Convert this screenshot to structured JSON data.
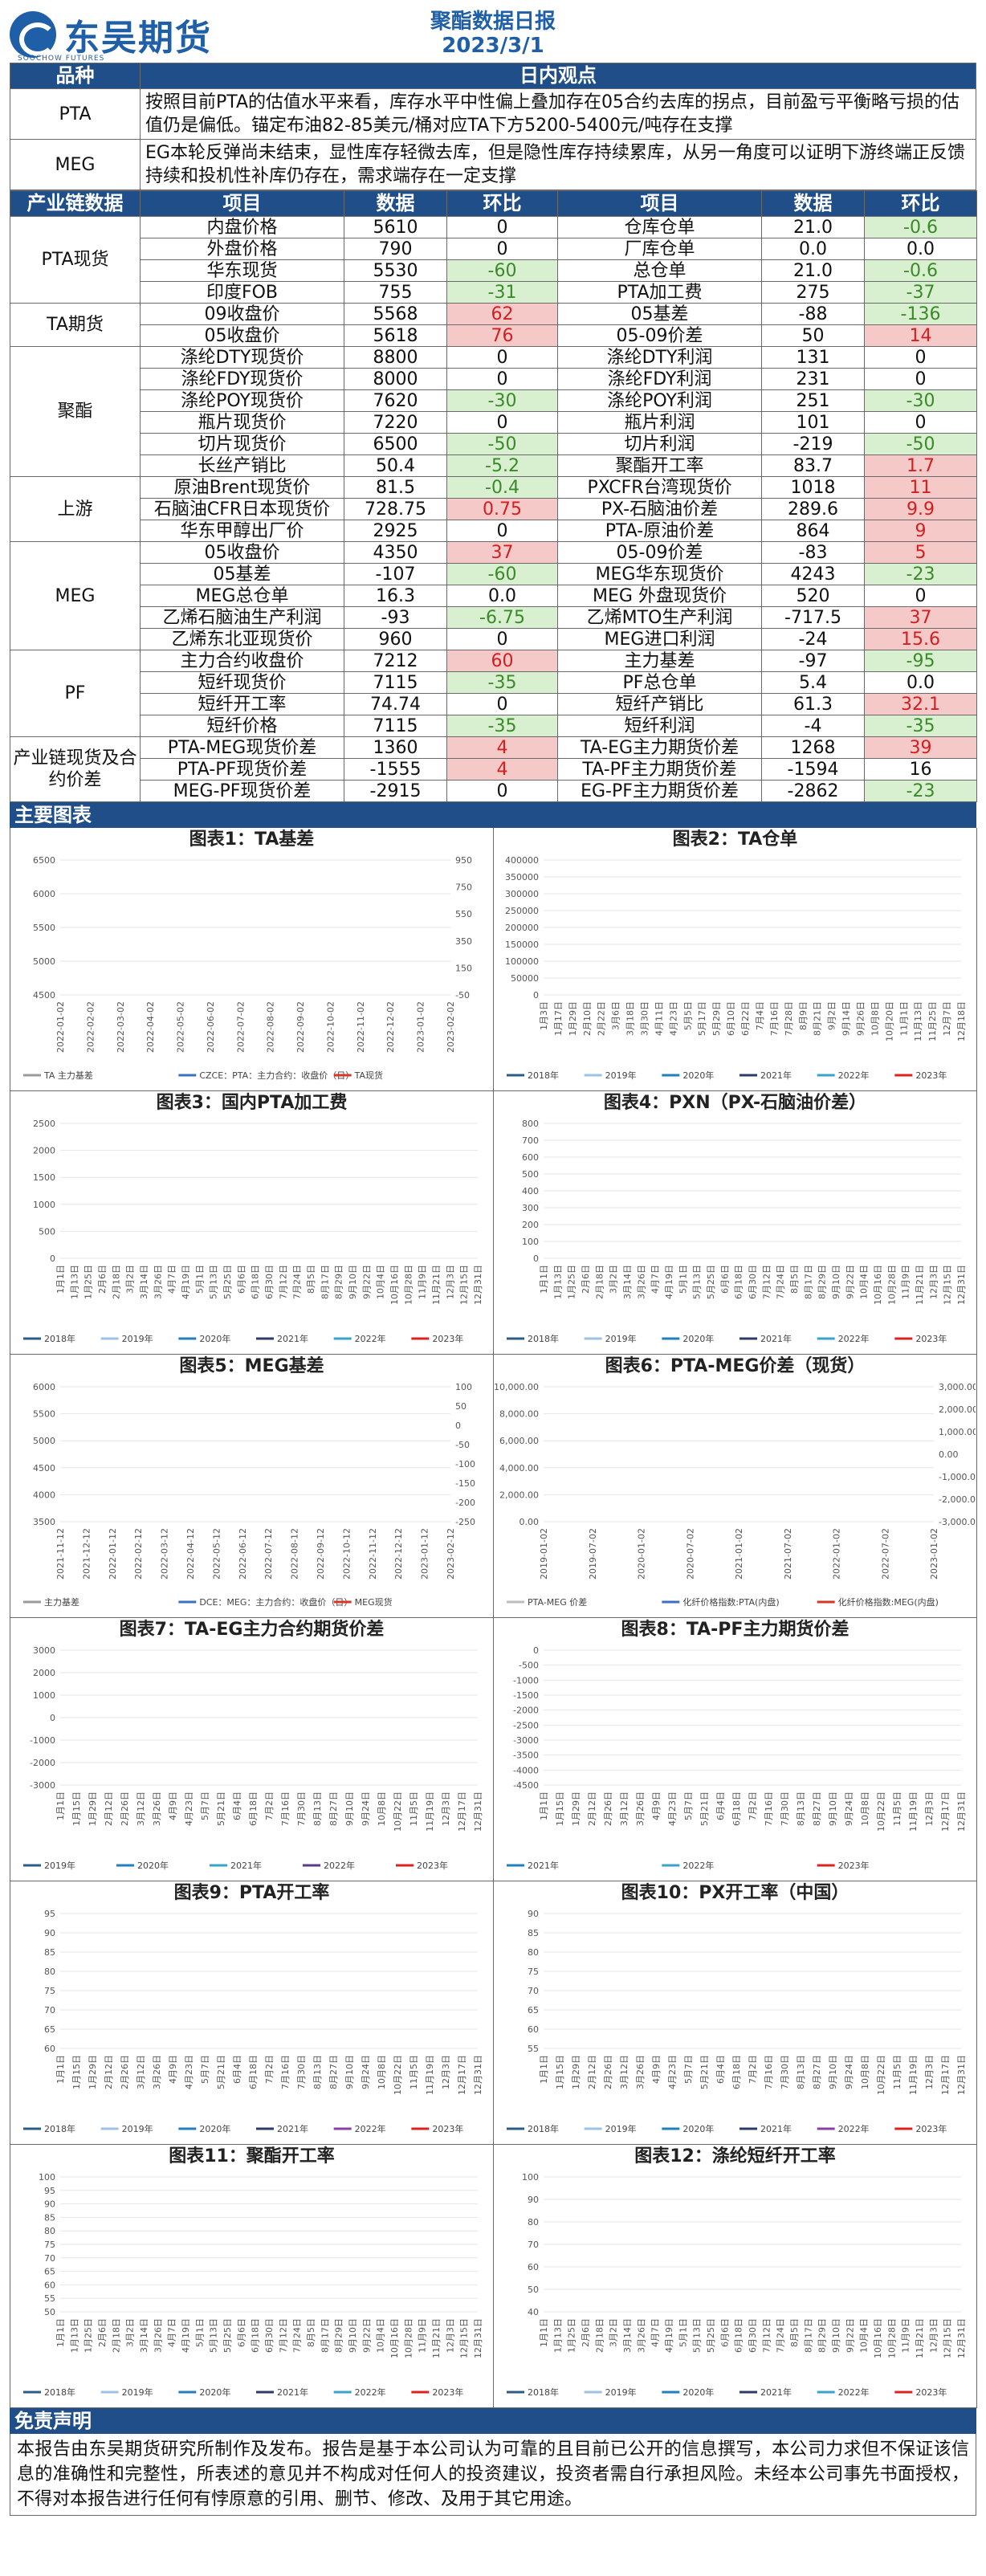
{
  "header": {
    "company": "东吴期货",
    "company_en": "SOOCHOW FUTURES",
    "report_name": "聚酯数据日报",
    "date": "2023/3/1"
  },
  "view": {
    "head_left": "品种",
    "head_right": "日内观点",
    "rows": [
      {
        "name": "PTA",
        "text": "按照目前PTA的估值水平来看，库存水平中性偏上叠加存在05合约去库的拐点，目前盈亏平衡略亏损的估值仍是偏低。锚定布油82-85美元/桶对应TA下方5200-5400元/吨存在支撑"
      },
      {
        "name": "MEG",
        "text": "EG本轮反弹尚未结束，显性库存轻微去库，但是隐性库存持续累库，从另一角度可以证明下游终端正反馈持续和投机性补库仍存在，需求端存在一定支撑"
      }
    ]
  },
  "industry": {
    "headers": [
      "产业链数据",
      "项目",
      "数据",
      "环比",
      "项目",
      "数据",
      "环比"
    ],
    "groups": [
      {
        "name": "PTA现货",
        "rows": [
          [
            "内盘价格",
            "5610",
            "0",
            "",
            "仓库仓单",
            "21.0",
            "-0.6",
            "g"
          ],
          [
            "外盘价格",
            "790",
            "0",
            "",
            "厂库仓单",
            "0.0",
            "0.0",
            ""
          ],
          [
            "华东现货",
            "5530",
            "-60",
            "g",
            "总仓单",
            "21.0",
            "-0.6",
            "g"
          ],
          [
            "印度FOB",
            "755",
            "-31",
            "g",
            "PTA加工费",
            "275",
            "-37",
            "g"
          ]
        ]
      },
      {
        "name": "TA期货",
        "rows": [
          [
            "09收盘价",
            "5568",
            "62",
            "r",
            "05基差",
            "-88",
            "-136",
            "g"
          ],
          [
            "05收盘价",
            "5618",
            "76",
            "r",
            "05-09价差",
            "50",
            "14",
            "r"
          ]
        ]
      },
      {
        "name": "聚酯",
        "rows": [
          [
            "涤纶DTY现货价",
            "8800",
            "0",
            "",
            "涤纶DTY利润",
            "131",
            "0",
            ""
          ],
          [
            "涤纶FDY现货价",
            "8000",
            "0",
            "",
            "涤纶FDY利润",
            "231",
            "0",
            ""
          ],
          [
            "涤纶POY现货价",
            "7620",
            "-30",
            "g",
            "涤纶POY利润",
            "251",
            "-30",
            "g"
          ],
          [
            "瓶片现货价",
            "7220",
            "0",
            "",
            "瓶片利润",
            "101",
            "0",
            ""
          ],
          [
            "切片现货价",
            "6500",
            "-50",
            "g",
            "切片利润",
            "-219",
            "-50",
            "g"
          ],
          [
            "长丝产销比",
            "50.4",
            "-5.2",
            "g",
            "聚酯开工率",
            "83.7",
            "1.7",
            "r"
          ]
        ]
      },
      {
        "name": "上游",
        "rows": [
          [
            "原油Brent现货价",
            "81.5",
            "-0.4",
            "g",
            "PXCFR台湾现货价",
            "1018",
            "11",
            "r"
          ],
          [
            "石脑油CFR日本现货价",
            "728.75",
            "0.75",
            "r",
            "PX-石脑油价差",
            "289.6",
            "9.9",
            "r"
          ],
          [
            "华东甲醇出厂价",
            "2925",
            "0",
            "",
            "PTA-原油价差",
            "864",
            "9",
            "r"
          ]
        ]
      },
      {
        "name": "MEG",
        "rows": [
          [
            "05收盘价",
            "4350",
            "37",
            "r",
            "05-09价差",
            "-83",
            "5",
            "r"
          ],
          [
            "05基差",
            "-107",
            "-60",
            "g",
            "MEG华东现货价",
            "4243",
            "-23",
            "g"
          ],
          [
            "MEG总仓单",
            "16.3",
            "0.0",
            "",
            "MEG 外盘现货价",
            "520",
            "0",
            ""
          ],
          [
            "乙烯石脑油生产利润",
            "-93",
            "-6.75",
            "g",
            "乙烯MTO生产利润",
            "-717.5",
            "37",
            "r"
          ],
          [
            "乙烯东北亚现货价",
            "960",
            "0",
            "",
            "MEG进口利润",
            "-24",
            "15.6",
            "r"
          ]
        ]
      },
      {
        "name": "PF",
        "rows": [
          [
            "主力合约收盘价",
            "7212",
            "60",
            "r",
            "主力基差",
            "-97",
            "-95",
            "g"
          ],
          [
            "短纤现货价",
            "7115",
            "-35",
            "g",
            "PF总仓单",
            "5.4",
            "0.0",
            ""
          ],
          [
            "短纤开工率",
            "74.74",
            "0",
            "",
            "短纤产销比",
            "61.3",
            "32.1",
            "r"
          ],
          [
            "短纤价格",
            "7115",
            "-35",
            "g",
            "短纤利润",
            "-4",
            "-35",
            "g"
          ]
        ]
      },
      {
        "name": "产业链现货及合约价差",
        "rows": [
          [
            "PTA-MEG现货价差",
            "1360",
            "4",
            "r",
            "TA-EG主力期货价差",
            "1268",
            "39",
            "r"
          ],
          [
            "PTA-PF现货价差",
            "-1555",
            "4",
            "r",
            "TA-PF主力期货价差",
            "-1594",
            "16",
            ""
          ],
          [
            "MEG-PF现货价差",
            "-2915",
            "0",
            "",
            "EG-PF主力期货价差",
            "-2862",
            "-23",
            "g"
          ]
        ]
      }
    ]
  },
  "charts_section": "主要图表",
  "charts": [
    {
      "title": "图表1：TA基差",
      "y_left": [
        "6500",
        "6000",
        "5500",
        "5000",
        "4500"
      ],
      "y_right": [
        "950",
        "750",
        "550",
        "350",
        "150",
        "-50"
      ],
      "x": [
        "2022-01-02",
        "2022-02-02",
        "2022-03-02",
        "2022-04-02",
        "2022-05-02",
        "2022-06-02",
        "2022-07-02",
        "2022-08-02",
        "2022-09-02",
        "2022-10-02",
        "2022-11-02",
        "2022-12-02",
        "2023-01-02",
        "2023-02-02"
      ],
      "legend": [
        "TA 主力基差",
        "CZCE：PTA：主力合约：收盘价（日）",
        "TA现货"
      ],
      "colors": [
        "#9a9a9a",
        "#3a6fc4",
        "#d8352a"
      ]
    },
    {
      "title": "图表2：TA仓单",
      "y_left": [
        "400000",
        "350000",
        "300000",
        "250000",
        "200000",
        "150000",
        "100000",
        "50000",
        "0"
      ],
      "x": [
        "1月3日",
        "1月17日",
        "1月29日",
        "2月10日",
        "2月22日",
        "3月6日",
        "3月18日",
        "3月30日",
        "4月11日",
        "4月23日",
        "5月5日",
        "5月17日",
        "5月29日",
        "6月10日",
        "6月22日",
        "7月4日",
        "7月16日",
        "7月28日",
        "8月9日",
        "8月21日",
        "9月2日",
        "9月14日",
        "9月26日",
        "10月8日",
        "10月20日",
        "11月1日",
        "11月13日",
        "11月25日",
        "12月7日",
        "12月18日"
      ],
      "legend": [
        "2018年",
        "2019年",
        "2020年",
        "2021年",
        "2022年",
        "2023年"
      ],
      "colors": [
        "#2b5d8a",
        "#9bc3e6",
        "#1f7fbf",
        "#2e3b66",
        "#35a4c9",
        "#e01f1f"
      ]
    },
    {
      "title": "图表3：国内PTA加工费",
      "y_left": [
        "2500",
        "2000",
        "1500",
        "1000",
        "500",
        "0"
      ],
      "x": [
        "1月1日",
        "1月13日",
        "1月25日",
        "2月6日",
        "2月18日",
        "3月2日",
        "3月14日",
        "3月26日",
        "4月7日",
        "4月19日",
        "5月1日",
        "5月13日",
        "5月25日",
        "6月6日",
        "6月18日",
        "6月30日",
        "7月12日",
        "7月24日",
        "8月5日",
        "8月17日",
        "8月29日",
        "9月10日",
        "9月22日",
        "10月4日",
        "10月16日",
        "10月28日",
        "11月9日",
        "11月21日",
        "12月3日",
        "12月15日",
        "12月31日"
      ],
      "legend": [
        "2018年",
        "2019年",
        "2020年",
        "2021年",
        "2022年",
        "2023年"
      ],
      "colors": [
        "#2b5d8a",
        "#9bc3e6",
        "#1f7fbf",
        "#2e3b66",
        "#35a4c9",
        "#e01f1f"
      ]
    },
    {
      "title": "图表4：PXN（PX-石脑油价差）",
      "y_left": [
        "800",
        "700",
        "600",
        "500",
        "400",
        "300",
        "200",
        "100",
        "0"
      ],
      "x": [
        "1月1日",
        "1月13日",
        "1月25日",
        "2月6日",
        "2月18日",
        "3月2日",
        "3月14日",
        "3月26日",
        "4月7日",
        "4月19日",
        "5月1日",
        "5月13日",
        "5月25日",
        "6月6日",
        "6月18日",
        "6月30日",
        "7月12日",
        "7月24日",
        "8月5日",
        "8月17日",
        "8月29日",
        "9月10日",
        "9月22日",
        "10月4日",
        "10月16日",
        "10月28日",
        "11月9日",
        "11月21日",
        "12月3日",
        "12月15日",
        "12月31日"
      ],
      "legend": [
        "2018年",
        "2019年",
        "2020年",
        "2021年",
        "2022年",
        "2023年"
      ],
      "colors": [
        "#2b5d8a",
        "#9bc3e6",
        "#1f7fbf",
        "#2e3b66",
        "#35a4c9",
        "#e01f1f"
      ]
    },
    {
      "title": "图表5：MEG基差",
      "y_left": [
        "6000",
        "5500",
        "5000",
        "4500",
        "4000",
        "3500"
      ],
      "y_right": [
        "100",
        "50",
        "0",
        "-50",
        "-100",
        "-150",
        "-200",
        "-250"
      ],
      "x": [
        "2021-11-12",
        "2021-12-12",
        "2022-01-12",
        "2022-02-12",
        "2022-03-12",
        "2022-04-12",
        "2022-05-12",
        "2022-06-12",
        "2022-07-12",
        "2022-08-12",
        "2022-09-12",
        "2022-10-12",
        "2022-11-12",
        "2022-12-12",
        "2023-01-12",
        "2023-02-12"
      ],
      "legend": [
        "主力基差",
        "DCE：MEG：主力合约：收盘价（日）",
        "MEG现货"
      ],
      "colors": [
        "#9a9a9a",
        "#3a6fc4",
        "#d8352a"
      ]
    },
    {
      "title": "图表6：PTA-MEG价差（现货）",
      "y_left": [
        "10,000.00",
        "8,000.00",
        "6,000.00",
        "4,000.00",
        "2,000.00",
        "0.00"
      ],
      "y_right": [
        "3,000.00",
        "2,000.00",
        "1,000.00",
        "0.00",
        "-1,000.00",
        "-2,000.00",
        "-3,000.00"
      ],
      "x": [
        "2019-01-02",
        "2019-07-02",
        "2020-01-02",
        "2020-07-02",
        "2021-01-02",
        "2021-07-02",
        "2022-01-02",
        "2022-07-02",
        "2023-01-02"
      ],
      "legend": [
        "PTA-MEG 价差",
        "化纤价格指数:PTA(内盘)",
        "化纤价格指数:MEG(内盘)"
      ],
      "colors": [
        "#bdbdbd",
        "#3a6fc4",
        "#d8352a"
      ]
    },
    {
      "title": "图表7：TA-EG主力合约期货价差",
      "y_left": [
        "3000",
        "2000",
        "1000",
        "0",
        "-1000",
        "-2000",
        "-3000"
      ],
      "x": [
        "1月1日",
        "1月15日",
        "1月29日",
        "2月12日",
        "2月26日",
        "3月12日",
        "3月26日",
        "4月9日",
        "4月23日",
        "5月7日",
        "5月21日",
        "6月4日",
        "6月18日",
        "7月2日",
        "7月16日",
        "7月30日",
        "8月13日",
        "8月27日",
        "9月10日",
        "9月24日",
        "10月8日",
        "10月22日",
        "11月5日",
        "11月19日",
        "12月3日",
        "12月17日",
        "12月31日"
      ],
      "legend": [
        "2019年",
        "2020年",
        "2021年",
        "2022年",
        "2023年"
      ],
      "colors": [
        "#2b5d8a",
        "#1f7fbf",
        "#35a4c9",
        "#5b3a8c",
        "#e01f1f"
      ]
    },
    {
      "title": "图表8：TA-PF主力期货价差",
      "y_left": [
        "0",
        "-500",
        "-1000",
        "-1500",
        "-2000",
        "-2500",
        "-3000",
        "-3500",
        "-4000",
        "-4500"
      ],
      "x": [
        "1月1日",
        "1月15日",
        "1月29日",
        "2月12日",
        "2月26日",
        "3月12日",
        "3月26日",
        "4月9日",
        "4月23日",
        "5月7日",
        "5月21日",
        "6月4日",
        "6月18日",
        "7月2日",
        "7月16日",
        "7月30日",
        "8月13日",
        "8月27日",
        "9月10日",
        "9月24日",
        "10月8日",
        "10月22日",
        "11月5日",
        "11月19日",
        "12月3日",
        "12月17日",
        "12月31日"
      ],
      "legend": [
        "2021年",
        "2022年",
        "2023年"
      ],
      "colors": [
        "#1f7fbf",
        "#35a4c9",
        "#e01f1f"
      ]
    },
    {
      "title": "图表9：PTA开工率",
      "y_left": [
        "95",
        "90",
        "85",
        "80",
        "75",
        "70",
        "65",
        "60"
      ],
      "x": [
        "1月1日",
        "1月15日",
        "1月29日",
        "2月12日",
        "2月26日",
        "3月12日",
        "3月26日",
        "4月9日",
        "4月23日",
        "5月7日",
        "5月21日",
        "6月4日",
        "6月18日",
        "7月2日",
        "7月16日",
        "7月30日",
        "8月13日",
        "8月27日",
        "9月10日",
        "9月24日",
        "10月8日",
        "10月22日",
        "11月5日",
        "11月19日",
        "12月3日",
        "12月17日",
        "12月31日"
      ],
      "legend": [
        "2018年",
        "2019年",
        "2020年",
        "2021年",
        "2022年",
        "2023年"
      ],
      "colors": [
        "#2b5d8a",
        "#9bc3e6",
        "#1f7fbf",
        "#2e3b66",
        "#8a3fa8",
        "#e01f1f"
      ]
    },
    {
      "title": "图表10：PX开工率（中国）",
      "y_left": [
        "90",
        "85",
        "80",
        "75",
        "70",
        "65",
        "60",
        "55"
      ],
      "x": [
        "1月1日",
        "1月15日",
        "1月29日",
        "2月12日",
        "2月26日",
        "3月12日",
        "3月26日",
        "4月9日",
        "4月23日",
        "5月7日",
        "5月21日",
        "6月4日",
        "6月18日",
        "7月2日",
        "7月16日",
        "7月30日",
        "8月13日",
        "8月27日",
        "9月10日",
        "9月24日",
        "10月8日",
        "10月22日",
        "11月5日",
        "11月19日",
        "12月3日",
        "12月17日",
        "12月31日"
      ],
      "legend": [
        "2018年",
        "2019年",
        "2020年",
        "2021年",
        "2022年",
        "2023年"
      ],
      "colors": [
        "#2b5d8a",
        "#9bc3e6",
        "#1f7fbf",
        "#2e3b66",
        "#8a3fa8",
        "#e01f1f"
      ]
    },
    {
      "title": "图表11：聚酯开工率",
      "y_left": [
        "100",
        "95",
        "90",
        "85",
        "80",
        "75",
        "70",
        "65",
        "60",
        "55",
        "50"
      ],
      "x": [
        "1月1日",
        "1月13日",
        "1月25日",
        "2月6日",
        "2月18日",
        "3月2日",
        "3月14日",
        "3月26日",
        "4月7日",
        "4月19日",
        "5月1日",
        "5月13日",
        "5月25日",
        "6月6日",
        "6月18日",
        "6月30日",
        "7月12日",
        "7月24日",
        "8月5日",
        "8月17日",
        "8月29日",
        "9月10日",
        "9月22日",
        "10月4日",
        "10月16日",
        "10月28日",
        "11月9日",
        "11月21日",
        "12月3日",
        "12月15日",
        "12月31日"
      ],
      "legend": [
        "2018年",
        "2019年",
        "2020年",
        "2021年",
        "2022年",
        "2023年"
      ],
      "colors": [
        "#2b5d8a",
        "#9bc3e6",
        "#1f7fbf",
        "#2e3b66",
        "#35a4c9",
        "#e01f1f"
      ]
    },
    {
      "title": "图表12：涤纶短纤开工率",
      "y_left": [
        "100",
        "90",
        "80",
        "70",
        "60",
        "50",
        "40"
      ],
      "x": [
        "1月1日",
        "1月13日",
        "1月25日",
        "2月6日",
        "2月18日",
        "3月2日",
        "3月14日",
        "3月26日",
        "4月7日",
        "4月19日",
        "5月1日",
        "5月13日",
        "5月25日",
        "6月6日",
        "6月18日",
        "6月30日",
        "7月12日",
        "7月24日",
        "8月5日",
        "8月17日",
        "8月29日",
        "9月10日",
        "9月22日",
        "10月4日",
        "10月16日",
        "10月28日",
        "11月9日",
        "11月21日",
        "12月3日",
        "12月15日",
        "12月31日"
      ],
      "legend": [
        "2018年",
        "2019年",
        "2020年",
        "2021年",
        "2022年",
        "2023年"
      ],
      "colors": [
        "#2b5d8a",
        "#9bc3e6",
        "#1f7fbf",
        "#2e3b66",
        "#35a4c9",
        "#e01f1f"
      ]
    }
  ],
  "disclaimer": {
    "title": "免责声明",
    "text": "本报告由东吴期货研究所制作及发布。报告是基于本公司认为可靠的且目前已公开的信息撰写，本公司力求但不保证该信息的准确性和完整性，所表述的意见并不构成对任何人的投资建议，投资者需自行承担风险。未经本公司事先书面授权，不得对本报告进行任何有悖原意的引用、删节、修改、及用于其它用途。"
  }
}
